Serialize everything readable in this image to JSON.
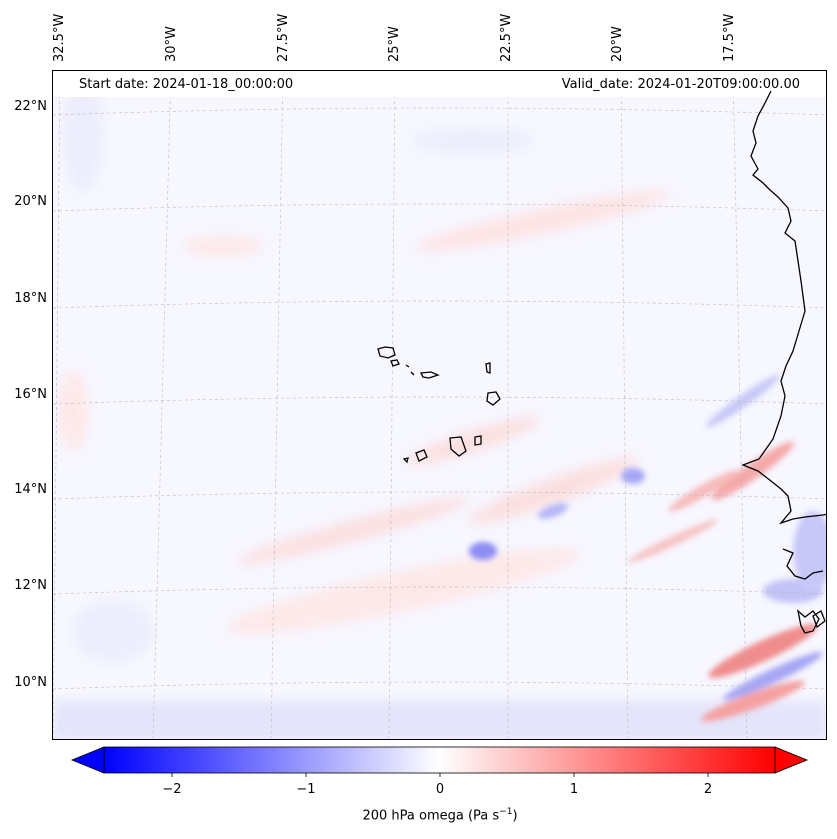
{
  "map": {
    "start_date": "Start date: 2024-01-18_00:00:00",
    "valid_date": "Valid_date: 2024-01-20T09:00:00.00",
    "latitude_labels": [
      "22°N",
      "20°N",
      "18°N",
      "16°N",
      "14°N",
      "12°N",
      "10°N"
    ],
    "longitude_labels": [
      "32.5°W",
      "30°W",
      "27.5°W",
      "25°W",
      "22.5°W",
      "20°W",
      "17.5°W"
    ],
    "features": [
      "Cape Verde islands",
      "West African coastline"
    ]
  },
  "colorbar": {
    "ticks": [
      "−2",
      "−1",
      "0",
      "1",
      "2"
    ],
    "label": "200 hPa omega (Pa s",
    "label_sup": "−1",
    "label_close": ")",
    "colors": {
      "min": "#0000ff",
      "mid": "#ffffff",
      "max": "#ff0000"
    }
  }
}
